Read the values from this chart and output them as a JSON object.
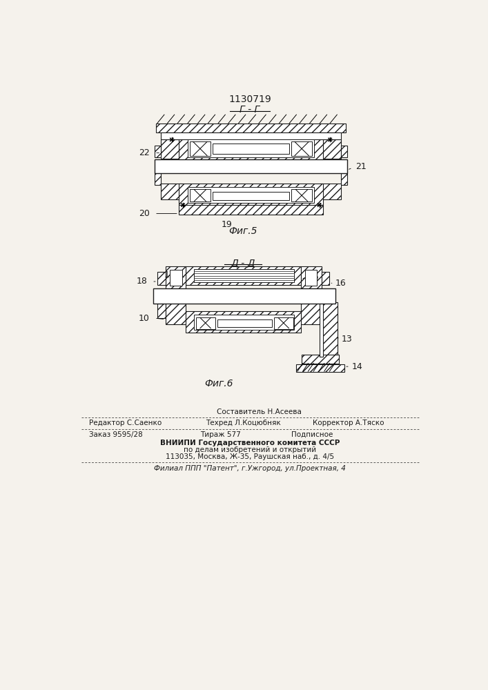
{
  "title": "1130719",
  "fig5_label": "Г - Г",
  "fig5_caption": "Фиг.5",
  "fig6_label": "Д - Д",
  "fig6_caption": "Фиг.6",
  "footer_line1": "Составитель Н.Асеева",
  "footer_line2_col1": "Редактор С.Саенко",
  "footer_line2_col2": "Техред Л.Коцюбняк",
  "footer_line2_col3": "Корректор А.Тяско",
  "footer_line3_col1": "Заказ 9595/28",
  "footer_line3_col2": "Тираж 577",
  "footer_line3_col3": "Подписное",
  "footer_line4": "ВНИИПИ Государственного комитета СССР",
  "footer_line5": "по делам изобретений и открытий",
  "footer_line6": "113035, Москва, Ж-35, Раушская наб., д. 4/5",
  "footer_line7": "Филиал ППП \"Патент\", г.Ужгород, ул.Проектная, 4",
  "bg_color": "#f5f2ec",
  "line_color": "#1a1a1a"
}
